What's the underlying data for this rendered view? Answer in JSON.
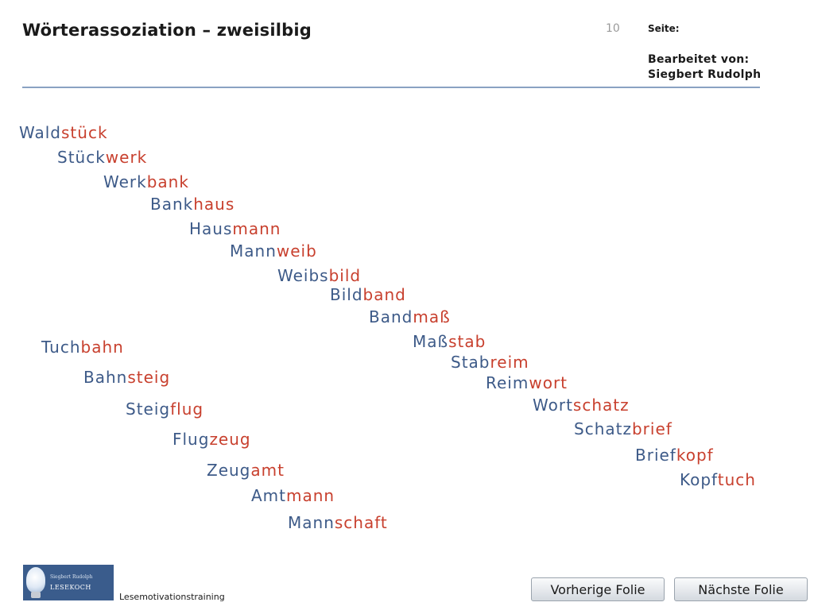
{
  "header": {
    "title": "Wörterassoziation – zweisilbig",
    "page_number": "10",
    "page_label": "Seite:",
    "edited_by_label": "Bearbeitet von:",
    "author": "Siegbert Rudolph"
  },
  "words": [
    {
      "first": "Wald",
      "second": "stück"
    },
    {
      "first": "Stück",
      "second": "werk"
    },
    {
      "first": "Werk",
      "second": "bank"
    },
    {
      "first": "Bank",
      "second": "haus"
    },
    {
      "first": "Haus",
      "second": "mann"
    },
    {
      "first": "Mann",
      "second": "weib"
    },
    {
      "first": "Weibs",
      "second": "bild"
    },
    {
      "first": "Bild",
      "second": "band"
    },
    {
      "first": "Band",
      "second": "maß"
    },
    {
      "first": "Maß",
      "second": "stab"
    },
    {
      "first": "Stab",
      "second": "reim"
    },
    {
      "first": "Reim",
      "second": "wort"
    },
    {
      "first": "Wort",
      "second": "schatz"
    },
    {
      "first": "Schatz",
      "second": "brief"
    },
    {
      "first": "Brief",
      "second": "kopf"
    },
    {
      "first": "Kopf",
      "second": "tuch"
    },
    {
      "first": "Tuch",
      "second": "bahn"
    },
    {
      "first": "Bahn",
      "second": "steig"
    },
    {
      "first": "Steig",
      "second": "flug"
    },
    {
      "first": "Flug",
      "second": "zeug"
    },
    {
      "first": "Zeug",
      "second": "amt"
    },
    {
      "first": "Amt",
      "second": "mann"
    },
    {
      "first": "Mann",
      "second": "schaft"
    }
  ],
  "colors": {
    "first_syllable": "#3d5a88",
    "second_syllable": "#c8402e"
  },
  "logo": {
    "line1": "Siegbert Rudolph",
    "line2": "LESEKOCH"
  },
  "footer": {
    "label": "Lesemotivationstraining"
  },
  "nav": {
    "prev_label": "Vorherige Folie",
    "next_label": "Nächste Folie"
  }
}
